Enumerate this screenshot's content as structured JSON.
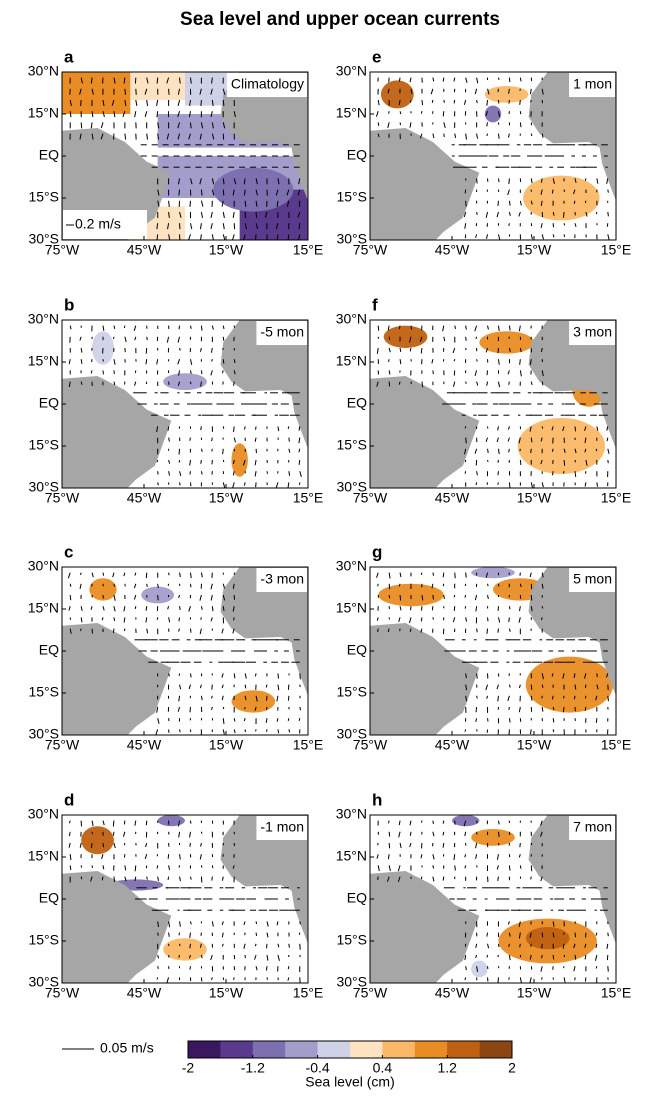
{
  "title": "Sea level and upper ocean currents",
  "panels": [
    {
      "letter": "a",
      "label": "Climatology"
    },
    {
      "letter": "b",
      "label": "-5 mon"
    },
    {
      "letter": "c",
      "label": "-3 mon"
    },
    {
      "letter": "d",
      "label": "-1 mon"
    },
    {
      "letter": "e",
      "label": "1 mon"
    },
    {
      "letter": "f",
      "label": "3 mon"
    },
    {
      "letter": "g",
      "label": "5 mon"
    },
    {
      "letter": "h",
      "label": "7 mon"
    }
  ],
  "xlim": [
    -75,
    15
  ],
  "ylim": [
    -30,
    30
  ],
  "xticks": [
    {
      "value": -75,
      "label": "75°W"
    },
    {
      "value": -45,
      "label": "45°W"
    },
    {
      "value": -15,
      "label": "15°W"
    },
    {
      "value": 15,
      "label": "15°E"
    }
  ],
  "yticks": [
    {
      "value": 30,
      "label": "30°N"
    },
    {
      "value": 15,
      "label": "15°N"
    },
    {
      "value": 0,
      "label": "EQ"
    },
    {
      "value": -15,
      "label": "15°S"
    },
    {
      "value": -30,
      "label": "30°S"
    }
  ],
  "climatology_vector_key": "0.2 m/s",
  "vector_key": "0.05 m/s",
  "colorbar": {
    "label": "Sea level (cm)",
    "lim": [
      -2,
      2
    ],
    "ticks": [
      -2,
      -1.2,
      -0.4,
      0.4,
      1.2,
      2
    ],
    "colors": [
      "#3a1860",
      "#5a3a8c",
      "#7d70b0",
      "#a39dcb",
      "#cfd1e7",
      "#fde3c1",
      "#fbb866",
      "#e98c23",
      "#bf6112",
      "#8b4612"
    ]
  }
}
